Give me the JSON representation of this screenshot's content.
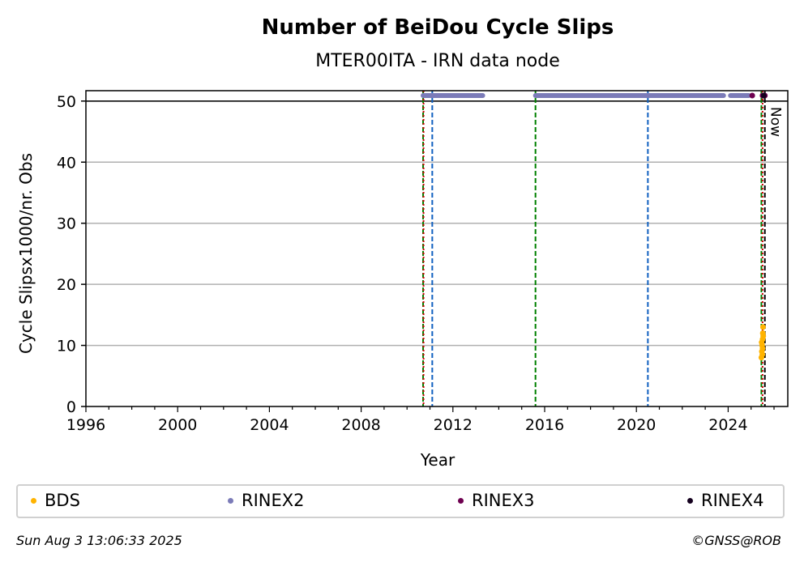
{
  "chart_data": {
    "type": "scatter",
    "title": "Number of BeiDou Cycle Slips",
    "subtitle": "MTER00ITA - IRN data node",
    "xlabel": "Year",
    "ylabel": "Cycle Slipsx1000/nr. Obs",
    "xlim": [
      1996,
      2026.6
    ],
    "ylim": [
      0,
      51.7
    ],
    "x_ticks": [
      1996,
      2000,
      2004,
      2008,
      2012,
      2016,
      2020,
      2024
    ],
    "y_ticks": [
      0,
      10,
      20,
      30,
      40,
      50
    ],
    "grid": "horizontal",
    "reference_line_y": 50,
    "series": [
      {
        "name": "BDS",
        "color": "#ffb300",
        "points": [
          [
            2025.45,
            8
          ],
          [
            2025.47,
            9
          ],
          [
            2025.48,
            10
          ],
          [
            2025.5,
            11
          ],
          [
            2025.51,
            12
          ],
          [
            2025.52,
            13
          ],
          [
            2025.46,
            10.5
          ],
          [
            2025.49,
            8.5
          ],
          [
            2025.53,
            11.5
          ],
          [
            2025.5,
            9.5
          ]
        ]
      },
      {
        "name": "RINEX2",
        "color": "#7b7bb8",
        "segments": [
          [
            2010.7,
            2013.3
          ],
          [
            2015.6,
            2023.8
          ],
          [
            2024.1,
            2024.9
          ]
        ],
        "y": 50.9
      },
      {
        "name": "RINEX3",
        "color": "#6e0050",
        "points": [
          [
            2025.05,
            50.9
          ],
          [
            2025.5,
            50.9
          ],
          [
            2025.6,
            50.9
          ]
        ]
      },
      {
        "name": "RINEX4",
        "color": "#14001e",
        "points": [
          [
            2025.55,
            50.9
          ]
        ]
      }
    ],
    "vlines": [
      {
        "x": 2010.7,
        "color": "#008000",
        "style": "dashed"
      },
      {
        "x": 2010.72,
        "color": "#cc0000",
        "style": "dotted"
      },
      {
        "x": 2011.1,
        "color": "#1060c0",
        "style": "dashed"
      },
      {
        "x": 2015.6,
        "color": "#008000",
        "style": "dashed"
      },
      {
        "x": 2020.5,
        "color": "#1060c0",
        "style": "dashed"
      },
      {
        "x": 2025.45,
        "color": "#008000",
        "style": "dashed"
      },
      {
        "x": 2025.5,
        "color": "#cc0000",
        "style": "dotted"
      },
      {
        "x": 2025.6,
        "color": "#000000",
        "style": "dashed"
      }
    ],
    "now_label": "Now",
    "legend_position": "bottom"
  },
  "legend": [
    {
      "label": "BDS",
      "color": "#ffb300"
    },
    {
      "label": "RINEX2",
      "color": "#7b7bb8"
    },
    {
      "label": "RINEX3",
      "color": "#6e0050"
    },
    {
      "label": "RINEX4",
      "color": "#14001e"
    }
  ],
  "footer": {
    "timestamp": "Sun Aug  3 13:06:33 2025",
    "credit": "©GNSS@ROB"
  }
}
